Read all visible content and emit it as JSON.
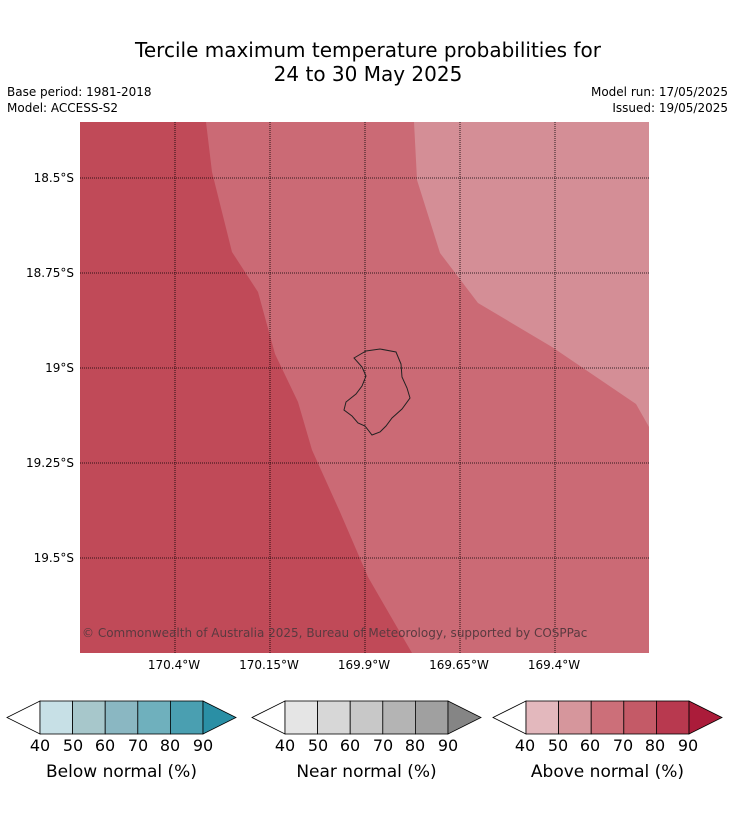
{
  "title_line1": "Tercile maximum temperature probabilities for",
  "title_line2": "24 to 30 May 2025",
  "base_period": "Base period: 1981-2018",
  "model": "Model: ACCESS-S2",
  "model_run": "Model run: 17/05/2025",
  "issued": "Issued: 19/05/2025",
  "lat_labels": [
    "18.5°S",
    "18.75°S",
    "19°S",
    "19.25°S",
    "19.5°S"
  ],
  "lon_labels": [
    "170.4°W",
    "170.15°W",
    "169.9°W",
    "169.65°W",
    "169.4°W"
  ],
  "copyright": "© Commonwealth of Australia 2025, Bureau of Meteorology, supported by COSPPac",
  "colors": {
    "above_80": "#c04a58",
    "above_70": "#cb6a75",
    "above_60": "#d48e96",
    "below": [
      "#ffffff",
      "#c7e0e6",
      "#a7c7cb",
      "#8ab7c2",
      "#6fb0bd",
      "#4a9fb1",
      "#2a8fa5"
    ],
    "near": [
      "#ffffff",
      "#e5e5e5",
      "#d7d7d7",
      "#c8c8c8",
      "#b4b4b4",
      "#a0a0a0",
      "#858585"
    ],
    "above": [
      "#ffffff",
      "#e3b8bd",
      "#d6969c",
      "#cc6f79",
      "#c45a67",
      "#b8394f",
      "#ab1c3a"
    ]
  },
  "colorbars": [
    {
      "label": "Below normal (%)",
      "ticks": [
        "40",
        "50",
        "60",
        "70",
        "80",
        "90"
      ]
    },
    {
      "label": "Near normal (%)",
      "ticks": [
        "40",
        "50",
        "60",
        "70",
        "80",
        "90"
      ]
    },
    {
      "label": "Above normal (%)",
      "ticks": [
        "40",
        "50",
        "60",
        "70",
        "80",
        "90"
      ]
    }
  ]
}
